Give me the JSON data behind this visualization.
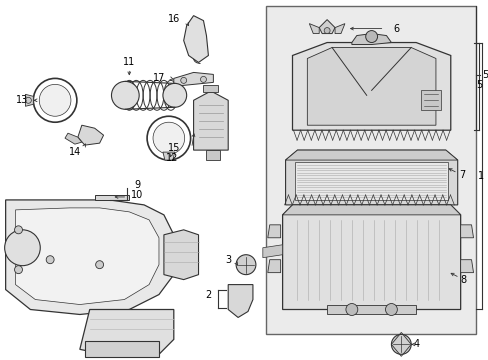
{
  "background_color": "#ffffff",
  "line_color": "#333333",
  "fill_light": "#e8e8e8",
  "fill_mid": "#d8d8d8",
  "fill_dark": "#c8c8c8",
  "box_fill": "#ebebeb",
  "fig_width": 4.89,
  "fig_height": 3.6,
  "dpi": 100,
  "label_fontsize": 7.0
}
